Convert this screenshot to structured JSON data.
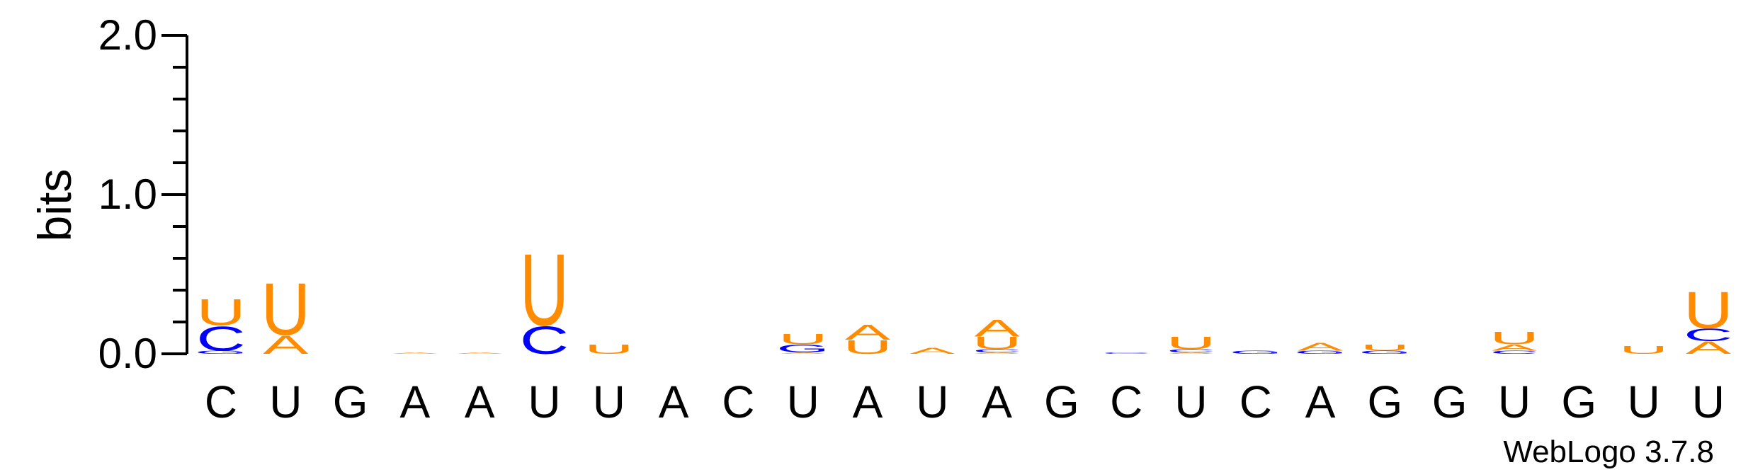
{
  "chart_data": {
    "type": "sequence-logo",
    "ylabel": "bits",
    "ylim": [
      0,
      2.0
    ],
    "yticks": [
      {
        "value": 2.0,
        "label": "2.0"
      },
      {
        "value": 1.0,
        "label": "1.0"
      },
      {
        "value": 0.0,
        "label": "0.0"
      }
    ],
    "colors": {
      "A": "#ff8c00",
      "U": "#ff8c00",
      "C": "#0000ff",
      "G": "#0000ff"
    },
    "positions": [
      {
        "label": "C",
        "stack": [
          {
            "letter": "G",
            "bits": 0.02
          },
          {
            "letter": "C",
            "bits": 0.16
          },
          {
            "letter": "U",
            "bits": 0.17
          }
        ]
      },
      {
        "label": "U",
        "stack": [
          {
            "letter": "A",
            "bits": 0.12
          },
          {
            "letter": "U",
            "bits": 0.34
          }
        ]
      },
      {
        "label": "G",
        "stack": []
      },
      {
        "label": "A",
        "stack": [
          {
            "letter": "A",
            "bits": 0.01
          }
        ]
      },
      {
        "label": "A",
        "stack": [
          {
            "letter": "A",
            "bits": 0.01
          }
        ]
      },
      {
        "label": "U",
        "stack": [
          {
            "letter": "C",
            "bits": 0.18
          },
          {
            "letter": "U",
            "bits": 0.47
          }
        ]
      },
      {
        "label": "U",
        "stack": [
          {
            "letter": "U",
            "bits": 0.06
          }
        ]
      },
      {
        "label": "A",
        "stack": []
      },
      {
        "label": "C",
        "stack": []
      },
      {
        "label": "U",
        "stack": [
          {
            "letter": "A",
            "bits": 0.01
          },
          {
            "letter": "G",
            "bits": 0.05
          },
          {
            "letter": "U",
            "bits": 0.07
          }
        ]
      },
      {
        "label": "A",
        "stack": [
          {
            "letter": "U",
            "bits": 0.09
          },
          {
            "letter": "A",
            "bits": 0.1
          }
        ]
      },
      {
        "label": "U",
        "stack": [
          {
            "letter": "A",
            "bits": 0.04
          }
        ]
      },
      {
        "label": "A",
        "stack": [
          {
            "letter": "A",
            "bits": 0.01
          },
          {
            "letter": "C",
            "bits": 0.02
          },
          {
            "letter": "U",
            "bits": 0.08
          },
          {
            "letter": "A",
            "bits": 0.11
          }
        ]
      },
      {
        "label": "G",
        "stack": []
      },
      {
        "label": "C",
        "stack": [
          {
            "letter": "C",
            "bits": 0.01
          }
        ]
      },
      {
        "label": "U",
        "stack": [
          {
            "letter": "A",
            "bits": 0.01
          },
          {
            "letter": "C",
            "bits": 0.02
          },
          {
            "letter": "U",
            "bits": 0.08
          }
        ]
      },
      {
        "label": "C",
        "stack": [
          {
            "letter": "G",
            "bits": 0.02
          }
        ]
      },
      {
        "label": "A",
        "stack": [
          {
            "letter": "G",
            "bits": 0.02
          },
          {
            "letter": "A",
            "bits": 0.05
          }
        ]
      },
      {
        "label": "G",
        "stack": [
          {
            "letter": "G",
            "bits": 0.02
          },
          {
            "letter": "U",
            "bits": 0.04
          }
        ]
      },
      {
        "label": "G",
        "stack": []
      },
      {
        "label": "U",
        "stack": [
          {
            "letter": "C",
            "bits": 0.02
          },
          {
            "letter": "A",
            "bits": 0.04
          },
          {
            "letter": "U",
            "bits": 0.08
          }
        ]
      },
      {
        "label": "G",
        "stack": []
      },
      {
        "label": "U",
        "stack": [
          {
            "letter": "U",
            "bits": 0.05
          }
        ]
      },
      {
        "label": "U",
        "stack": [
          {
            "letter": "A",
            "bits": 0.08
          },
          {
            "letter": "C",
            "bits": 0.08
          },
          {
            "letter": "U",
            "bits": 0.24
          }
        ]
      }
    ],
    "credit": "WebLogo 3.7.8"
  }
}
